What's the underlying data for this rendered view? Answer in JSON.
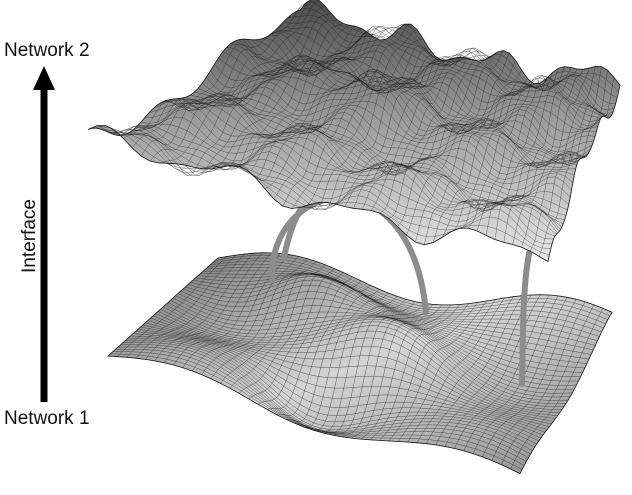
{
  "labels": {
    "top": "Network 2",
    "middle": "Interface",
    "bottom": "Network 1"
  },
  "colors": {
    "background": "#ffffff",
    "arrow": "#000000",
    "link": "#8c8c8c",
    "mesh_line": "#1a1a1a"
  },
  "icons": {
    "arrow": "up-arrow-icon"
  }
}
